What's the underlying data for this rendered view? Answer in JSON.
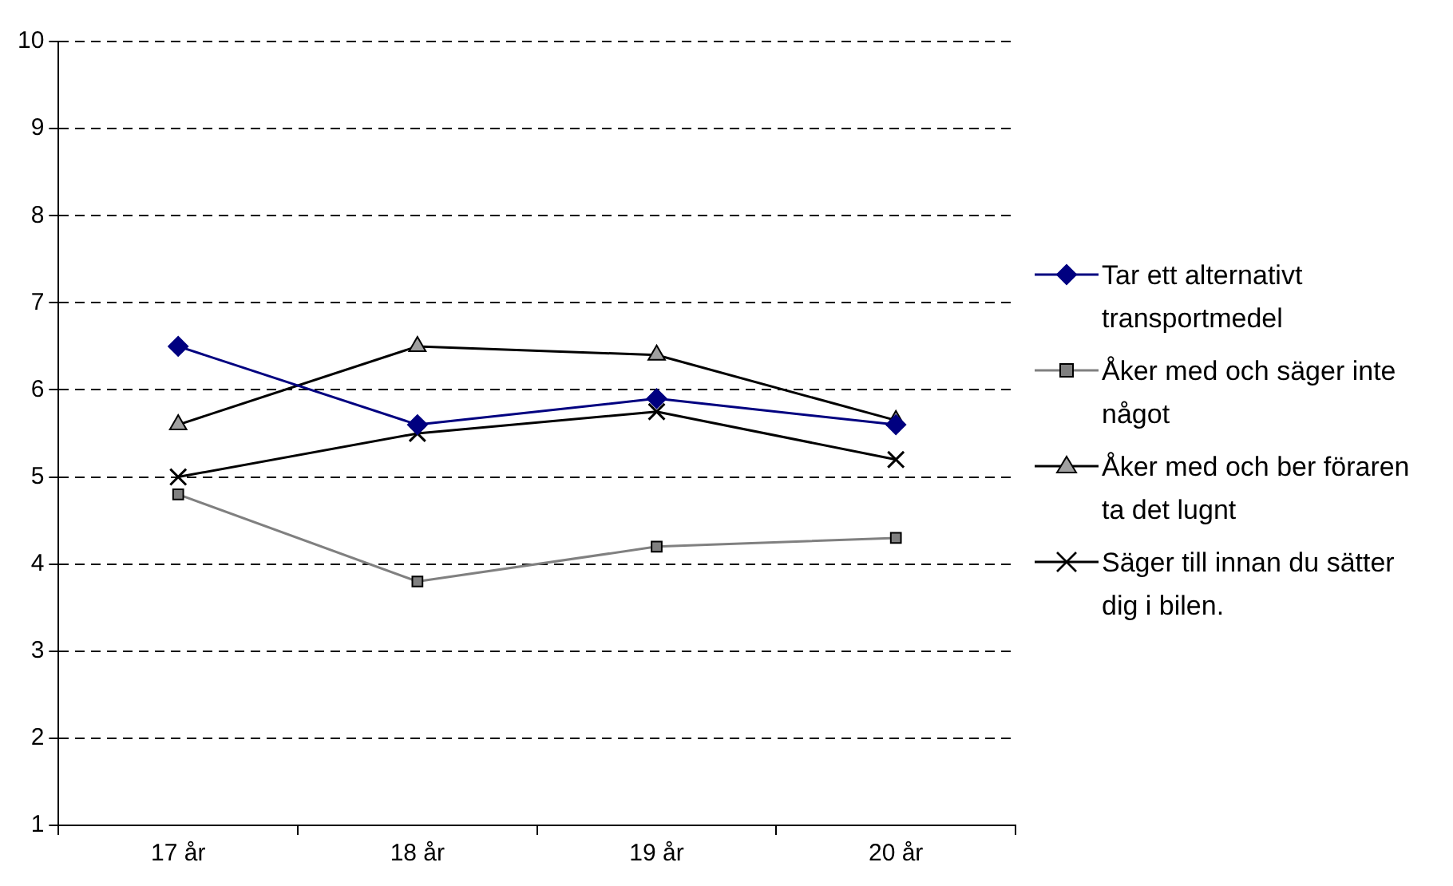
{
  "chart_data": {
    "type": "line",
    "categories": [
      "17 år",
      "18 år",
      "19 år",
      "20 år"
    ],
    "series": [
      {
        "name": "Tar ett alternativt transportmedel",
        "color": "#000080",
        "marker": "diamond",
        "values": [
          6.5,
          5.6,
          5.9,
          5.6
        ]
      },
      {
        "name": "Åker med  och säger inte något",
        "color": "#808080",
        "marker": "square",
        "values": [
          4.8,
          3.8,
          4.2,
          4.3
        ]
      },
      {
        "name": "Åker med och ber föraren ta det lugnt",
        "color": "#000000",
        "marker": "triangle",
        "values": [
          5.6,
          6.5,
          6.4,
          5.65
        ]
      },
      {
        "name": "Säger till innan du sätter dig i bilen.",
        "color": "#000000",
        "marker": "cross",
        "values": [
          5.0,
          5.5,
          5.75,
          5.2
        ]
      }
    ],
    "ylim": [
      1,
      10
    ],
    "yticks": [
      1,
      2,
      3,
      4,
      5,
      6,
      7,
      8,
      9,
      10
    ],
    "grid": "y",
    "legend": "right"
  }
}
